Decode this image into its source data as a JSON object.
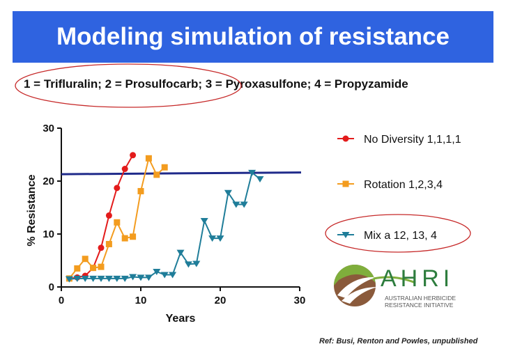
{
  "header": {
    "title": "Modeling simulation of resistance"
  },
  "subtitle": "1 = Trifluralin; 2 = Prosulfocarb; 3 = Pyroxasulfone; 4 = Propyzamide",
  "reference": "Ref: Busi, Renton and Powles, unpublished",
  "logo": {
    "name": "AHRI",
    "line1": "AUSTRALIAN HERBICIDE",
    "line2": "RESISTANCE INITIATIVE"
  },
  "colors": {
    "title_bg": "#2f63e0",
    "threshold": "#1f2a8a",
    "annotation": "#c62828"
  },
  "chart_data": {
    "type": "line",
    "xlabel": "Years",
    "ylabel": "% Resistance",
    "xlim": [
      0,
      30
    ],
    "ylim": [
      0,
      30
    ],
    "xticks": [
      0,
      10,
      20,
      30
    ],
    "yticks": [
      0,
      10,
      20,
      30
    ],
    "grid": false,
    "legend_position": "right",
    "threshold": 21.5,
    "series": [
      {
        "name": "No Diversity 1,1,1,1",
        "color": "#e31b1b",
        "marker": "circle",
        "x": [
          1,
          2,
          3,
          4,
          5,
          6,
          7,
          8,
          9
        ],
        "y": [
          1.6,
          1.8,
          2.1,
          3.6,
          7.4,
          13.5,
          18.7,
          22.3,
          24.9
        ]
      },
      {
        "name": "Rotation 1,2,3,4",
        "color": "#f39c1f",
        "marker": "square",
        "x": [
          1,
          2,
          3,
          4,
          5,
          6,
          7,
          8,
          9,
          10,
          11,
          12,
          13
        ],
        "y": [
          1.6,
          3.5,
          5.3,
          3.6,
          3.8,
          8.1,
          12.2,
          9.2,
          9.5,
          18.1,
          24.3,
          21.2,
          22.6
        ]
      },
      {
        "name": "Mix a 12, 13, 4",
        "color": "#1f7d99",
        "marker": "triangle-down",
        "x": [
          1,
          2,
          3,
          4,
          5,
          6,
          7,
          8,
          9,
          10,
          11,
          12,
          13,
          14,
          15,
          16,
          17,
          18,
          19,
          20,
          21,
          22,
          23,
          24,
          25
        ],
        "y": [
          1.5,
          1.6,
          1.6,
          1.6,
          1.6,
          1.6,
          1.6,
          1.6,
          1.9,
          1.8,
          1.8,
          2.9,
          2.3,
          2.3,
          6.5,
          4.3,
          4.4,
          12.5,
          9.2,
          9.2,
          17.8,
          15.6,
          15.6,
          21.6,
          20.4
        ]
      }
    ]
  }
}
